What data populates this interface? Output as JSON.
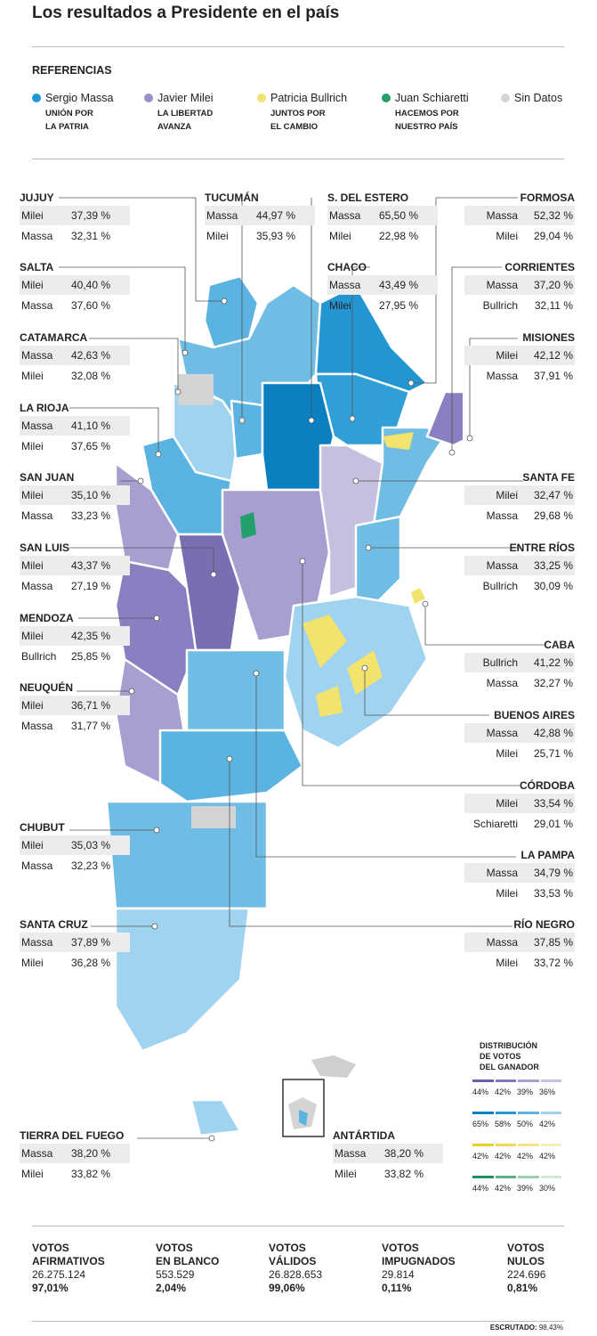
{
  "title": "Los resultados a Presidente en el país",
  "references_title": "REFERENCIAS",
  "colors": {
    "massa": "#1a9ad6",
    "milei": "#9b8fc8",
    "bullrich": "#f2e36e",
    "schiaretti": "#22a06b",
    "sin_datos": "#d4d4d4"
  },
  "legend": [
    {
      "name": "Sergio Massa",
      "party": "UNIÓN POR\nLA PATRIA",
      "color": "#1a9ad6"
    },
    {
      "name": "Javier Milei",
      "party": "LA LIBERTAD\nAVANZA",
      "color": "#9b8fc8"
    },
    {
      "name": "Patricia Bullrich",
      "party": "JUNTOS POR\nEL CAMBIO",
      "color": "#f2e36e"
    },
    {
      "name": "Juan Schiaretti",
      "party": "HACEMOS POR\nNUESTRO PAÍS",
      "color": "#22a06b"
    },
    {
      "name": "Sin Datos",
      "party": "",
      "color": "#d4d4d4"
    }
  ],
  "provinces_left": [
    {
      "name": "JUJUY",
      "r": [
        [
          "Milei",
          "37,39 %"
        ],
        [
          "Massa",
          "32,31 %"
        ]
      ]
    },
    {
      "name": "SALTA",
      "r": [
        [
          "Milei",
          "40,40 %"
        ],
        [
          "Massa",
          "37,60 %"
        ]
      ]
    },
    {
      "name": "CATAMARCA",
      "r": [
        [
          "Massa",
          "42,63 %"
        ],
        [
          "Milei",
          "32,08 %"
        ]
      ]
    },
    {
      "name": "LA RIOJA",
      "r": [
        [
          "Massa",
          "41,10 %"
        ],
        [
          "Milei",
          "37,65 %"
        ]
      ]
    },
    {
      "name": "SAN JUAN",
      "r": [
        [
          "Milei",
          "35,10 %"
        ],
        [
          "Massa",
          "33,23 %"
        ]
      ]
    },
    {
      "name": "SAN LUIS",
      "r": [
        [
          "Milei",
          "43,37 %"
        ],
        [
          "Massa",
          "27,19 %"
        ]
      ]
    },
    {
      "name": "MENDOZA",
      "r": [
        [
          "Milei",
          "42,35 %"
        ],
        [
          "Bullrich",
          "25,85 %"
        ]
      ]
    },
    {
      "name": "NEUQUÉN",
      "r": [
        [
          "Milei",
          "36,71 %"
        ],
        [
          "Massa",
          "31,77 %"
        ]
      ]
    },
    {
      "name": "CHUBUT",
      "r": [
        [
          "Milei",
          "35,03 %"
        ],
        [
          "Massa",
          "32,23 %"
        ]
      ]
    },
    {
      "name": "SANTA CRUZ",
      "r": [
        [
          "Massa",
          "37,89 %"
        ],
        [
          "Milei",
          "36,28 %"
        ]
      ]
    },
    {
      "name": "TIERRA DEL FUEGO",
      "r": [
        [
          "Massa",
          "38,20 %"
        ],
        [
          "Milei",
          "33,82 %"
        ]
      ]
    }
  ],
  "provinces_mid": [
    {
      "name": "TUCUMÁN",
      "r": [
        [
          "Massa",
          "44,97 %"
        ],
        [
          "Milei",
          "35,93 %"
        ]
      ]
    },
    {
      "name": "S. DEL ESTERO",
      "r": [
        [
          "Massa",
          "65,50 %"
        ],
        [
          "Milei",
          "22,98 %"
        ]
      ]
    },
    {
      "name": "CHACO",
      "r": [
        [
          "Massa",
          "43,49 %"
        ],
        [
          "Milei",
          "27,95 %"
        ]
      ]
    },
    {
      "name": "ANTÁRTIDA",
      "r": [
        [
          "Massa",
          "38,20 %"
        ],
        [
          "Milei",
          "33,82 %"
        ]
      ]
    }
  ],
  "provinces_right": [
    {
      "name": "FORMOSA",
      "r": [
        [
          "Massa",
          "52,32 %"
        ],
        [
          "Milei",
          "29,04 %"
        ]
      ]
    },
    {
      "name": "CORRIENTES",
      "r": [
        [
          "Massa",
          "37,20 %"
        ],
        [
          "Bullrich",
          "32,11 %"
        ]
      ]
    },
    {
      "name": "MISIONES",
      "r": [
        [
          "Milei",
          "42,12 %"
        ],
        [
          "Massa",
          "37,91 %"
        ]
      ]
    },
    {
      "name": "SANTA FE",
      "r": [
        [
          "Milei",
          "32,47 %"
        ],
        [
          "Massa",
          "29,68 %"
        ]
      ]
    },
    {
      "name": "ENTRE RÍOS",
      "r": [
        [
          "Massa",
          "33,25 %"
        ],
        [
          "Bullrich",
          "30,09 %"
        ]
      ]
    },
    {
      "name": "CABA",
      "r": [
        [
          "Bullrich",
          "41,22 %"
        ],
        [
          "Massa",
          "32,27 %"
        ]
      ]
    },
    {
      "name": "BUENOS AIRES",
      "r": [
        [
          "Massa",
          "42,88 %"
        ],
        [
          "Milei",
          "25,71 %"
        ]
      ]
    },
    {
      "name": "CÓRDOBA",
      "r": [
        [
          "Milei",
          "33,54 %"
        ],
        [
          "Schiaretti",
          "29,01 %"
        ]
      ]
    },
    {
      "name": "LA PAMPA",
      "r": [
        [
          "Massa",
          "34,79 %"
        ],
        [
          "Milei",
          "33,53 %"
        ]
      ]
    },
    {
      "name": "RÍO NEGRO",
      "r": [
        [
          "Massa",
          "37,85 %"
        ],
        [
          "Milei",
          "33,72 %"
        ]
      ]
    }
  ],
  "distribution_title": "DISTRIBUCIÓN\nDE VOTOS\nDEL GANADOR",
  "scales": [
    {
      "colors": [
        "#6b5fa6",
        "#857ab8",
        "#a89fd0",
        "#c5bfe0"
      ],
      "labels": [
        "44%",
        "42%",
        "39%",
        "36%"
      ]
    },
    {
      "colors": [
        "#0b7fbf",
        "#2396d2",
        "#5ab3e0",
        "#9fd3ef"
      ],
      "labels": [
        "65%",
        "58%",
        "50%",
        "42%"
      ]
    },
    {
      "colors": [
        "#e8cf2a",
        "#eed95a",
        "#f3e48a",
        "#f8eeb8"
      ],
      "labels": [
        "42%",
        "42%",
        "42%",
        "42%"
      ]
    },
    {
      "colors": [
        "#1f8f5c",
        "#5fb285",
        "#9bd0b2",
        "#cfe8d9"
      ],
      "labels": [
        "44%",
        "42%",
        "39%",
        "30%"
      ]
    }
  ],
  "stats": [
    {
      "label": "VOTOS\nAFIRMATIVOS",
      "value": "26.275.124",
      "pct": "97,01%"
    },
    {
      "label": "VOTOS\nEN BLANCO",
      "value": "553.529",
      "pct": "2,04%"
    },
    {
      "label": "VOTOS\nVÁLIDOS",
      "value": "26.828.653",
      "pct": "99,06%"
    },
    {
      "label": "VOTOS\nIMPUGNADOS",
      "value": "29.814",
      "pct": "0,11%"
    },
    {
      "label": "VOTOS\nNULOS",
      "value": "224.696",
      "pct": "0,81%"
    }
  ],
  "escrutado_label": "ESCRUTADO:",
  "escrutado_value": "98,43%"
}
